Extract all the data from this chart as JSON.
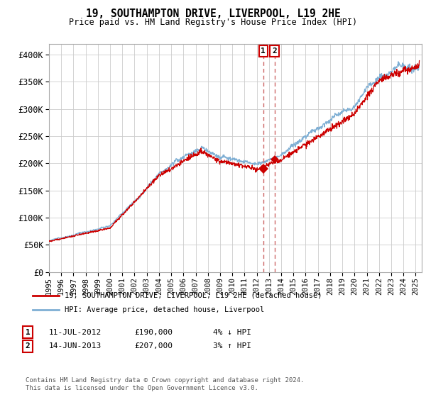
{
  "title": "19, SOUTHAMPTON DRIVE, LIVERPOOL, L19 2HE",
  "subtitle": "Price paid vs. HM Land Registry's House Price Index (HPI)",
  "ylabel_ticks": [
    "£0",
    "£50K",
    "£100K",
    "£150K",
    "£200K",
    "£250K",
    "£300K",
    "£350K",
    "£400K"
  ],
  "ytick_values": [
    0,
    50000,
    100000,
    150000,
    200000,
    250000,
    300000,
    350000,
    400000
  ],
  "ylim": [
    0,
    420000
  ],
  "xlim_start": 1995.0,
  "xlim_end": 2025.5,
  "xtick_years": [
    1995,
    1996,
    1997,
    1998,
    1999,
    2000,
    2001,
    2002,
    2003,
    2004,
    2005,
    2006,
    2007,
    2008,
    2009,
    2010,
    2011,
    2012,
    2013,
    2014,
    2015,
    2016,
    2017,
    2018,
    2019,
    2020,
    2021,
    2022,
    2023,
    2024,
    2025
  ],
  "transaction1": {
    "date_num": 2012.53,
    "price": 190000,
    "label": "1",
    "date_str": "11-JUL-2012",
    "price_str": "£190,000",
    "pct_str": "4% ↓ HPI"
  },
  "transaction2": {
    "date_num": 2013.45,
    "price": 207000,
    "label": "2",
    "date_str": "14-JUN-2013",
    "price_str": "£207,000",
    "pct_str": "3% ↑ HPI"
  },
  "red_line_color": "#cc0000",
  "blue_line_color": "#7fafd4",
  "dashed_line_color": "#cc6666",
  "legend_label_red": "19, SOUTHAMPTON DRIVE, LIVERPOOL, L19 2HE (detached house)",
  "legend_label_blue": "HPI: Average price, detached house, Liverpool",
  "footer": "Contains HM Land Registry data © Crown copyright and database right 2024.\nThis data is licensed under the Open Government Licence v3.0.",
  "background_color": "#ffffff",
  "grid_color": "#cccccc"
}
